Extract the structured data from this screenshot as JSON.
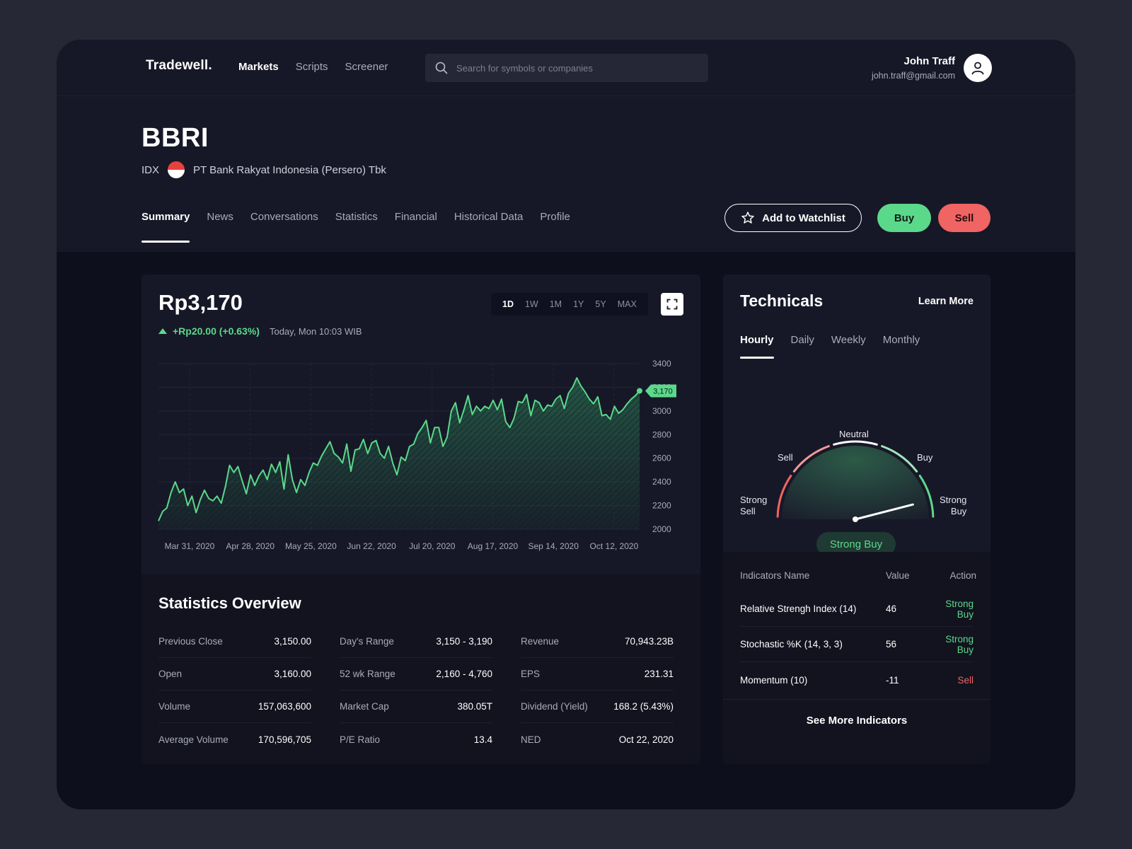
{
  "header": {
    "brand": "Tradewell.",
    "nav": [
      "Markets",
      "Scripts",
      "Screener"
    ],
    "active_nav": "Markets",
    "search_placeholder": "Search for symbols or companies",
    "user_name": "John Traff",
    "user_email": "john.traff@gmail.com"
  },
  "stock": {
    "ticker": "BBRI",
    "exchange": "IDX",
    "company": "PT Bank Rakyat Indonesia (Persero) Tbk",
    "flag_colors": [
      "#e8413c",
      "#ffffff"
    ]
  },
  "tabs": [
    "Summary",
    "News",
    "Conversations",
    "Statistics",
    "Financial",
    "Historical Data",
    "Profile"
  ],
  "active_tab": "Summary",
  "actions": {
    "watchlist": "Add to Watchlist",
    "buy": "Buy",
    "sell": "Sell"
  },
  "quote": {
    "price": "Rp3,170",
    "change": "+Rp20.00 (+0.63%)",
    "time": "Today, Mon 10:03 WIB",
    "ranges": [
      "1D",
      "1W",
      "1M",
      "1Y",
      "5Y",
      "MAX"
    ],
    "active_range": "1D"
  },
  "chart_data": {
    "type": "area",
    "x_ticks": [
      "Mar 31, 2020",
      "Apr 28, 2020",
      "May 25, 2020",
      "Jun 22, 2020",
      "Jul 20, 2020",
      "Aug 17, 2020",
      "Sep 14, 2020",
      "Oct 12, 2020"
    ],
    "y_ticks": [
      3400,
      3200,
      3000,
      2800,
      2600,
      2400,
      2200,
      2000
    ],
    "ylim": [
      2000,
      3400
    ],
    "current_label": "3,170",
    "current_value": 3170,
    "values": [
      2070,
      2150,
      2180,
      2310,
      2400,
      2310,
      2340,
      2200,
      2280,
      2140,
      2250,
      2330,
      2260,
      2240,
      2280,
      2220,
      2360,
      2540,
      2480,
      2530,
      2410,
      2300,
      2460,
      2370,
      2450,
      2500,
      2420,
      2550,
      2480,
      2570,
      2340,
      2630,
      2420,
      2310,
      2420,
      2370,
      2480,
      2560,
      2540,
      2620,
      2680,
      2740,
      2640,
      2610,
      2560,
      2720,
      2490,
      2670,
      2680,
      2760,
      2640,
      2730,
      2750,
      2640,
      2600,
      2700,
      2560,
      2460,
      2610,
      2580,
      2700,
      2720,
      2810,
      2860,
      2920,
      2730,
      2860,
      2860,
      2700,
      2780,
      3000,
      3070,
      2900,
      3010,
      3130,
      2970,
      3040,
      3000,
      3040,
      3020,
      3090,
      3010,
      3100,
      2910,
      2860,
      2940,
      3080,
      3070,
      3140,
      2960,
      3090,
      3070,
      3000,
      3050,
      3040,
      3100,
      3130,
      3020,
      3150,
      3200,
      3280,
      3210,
      3160,
      3100,
      3060,
      3120,
      2960,
      2970,
      2930,
      3040,
      2980,
      3010,
      3060,
      3100,
      3130,
      3170
    ]
  },
  "stats": {
    "title": "Statistics Overview",
    "columns": [
      [
        [
          "Previous Close",
          "3,150.00"
        ],
        [
          "Open",
          "3,160.00"
        ],
        [
          "Volume",
          "157,063,600"
        ],
        [
          "Average Volume",
          "170,596,705"
        ]
      ],
      [
        [
          "Day's Range",
          "3,150 - 3,190"
        ],
        [
          "52 wk Range",
          "2,160 - 4,760"
        ],
        [
          "Market Cap",
          "380.05T"
        ],
        [
          "P/E Ratio",
          "13.4"
        ]
      ],
      [
        [
          "Revenue",
          "70,943.23B"
        ],
        [
          "EPS",
          "231.31"
        ],
        [
          "Dividend (Yield)",
          "168.2 (5.43%)"
        ],
        [
          "NED",
          "Oct 22, 2020"
        ]
      ]
    ]
  },
  "technicals": {
    "title": "Technicals",
    "learn_more": "Learn More",
    "tabs": [
      "Hourly",
      "Daily",
      "Weekly",
      "Monthly"
    ],
    "active_tab": "Hourly",
    "gauge": {
      "labels": {
        "strong_sell": "Strong\nSell",
        "sell": "Sell",
        "neutral": "Neutral",
        "buy": "Buy",
        "strong_buy": "Strong\nBuy"
      },
      "needle_level": 0.92,
      "verdict": "Strong Buy"
    },
    "indicators_header": {
      "name": "Indicators Name",
      "value": "Value",
      "action": "Action"
    },
    "indicators": [
      {
        "name": "Relative Strengh Index (14)",
        "value": "46",
        "action": "Strong Buy",
        "tone": "buy"
      },
      {
        "name": "Stochastic %K (14, 3, 3)",
        "value": "56",
        "action": "Strong Buy",
        "tone": "buy"
      },
      {
        "name": "Momentum (10)",
        "value": "-11",
        "action": "Sell",
        "tone": "sell"
      }
    ],
    "see_more": "See More Indicators"
  },
  "colors": {
    "accent_green": "#5bd98b",
    "accent_red": "#f06464",
    "panel": "#171827",
    "background": "#0e0f1d"
  }
}
